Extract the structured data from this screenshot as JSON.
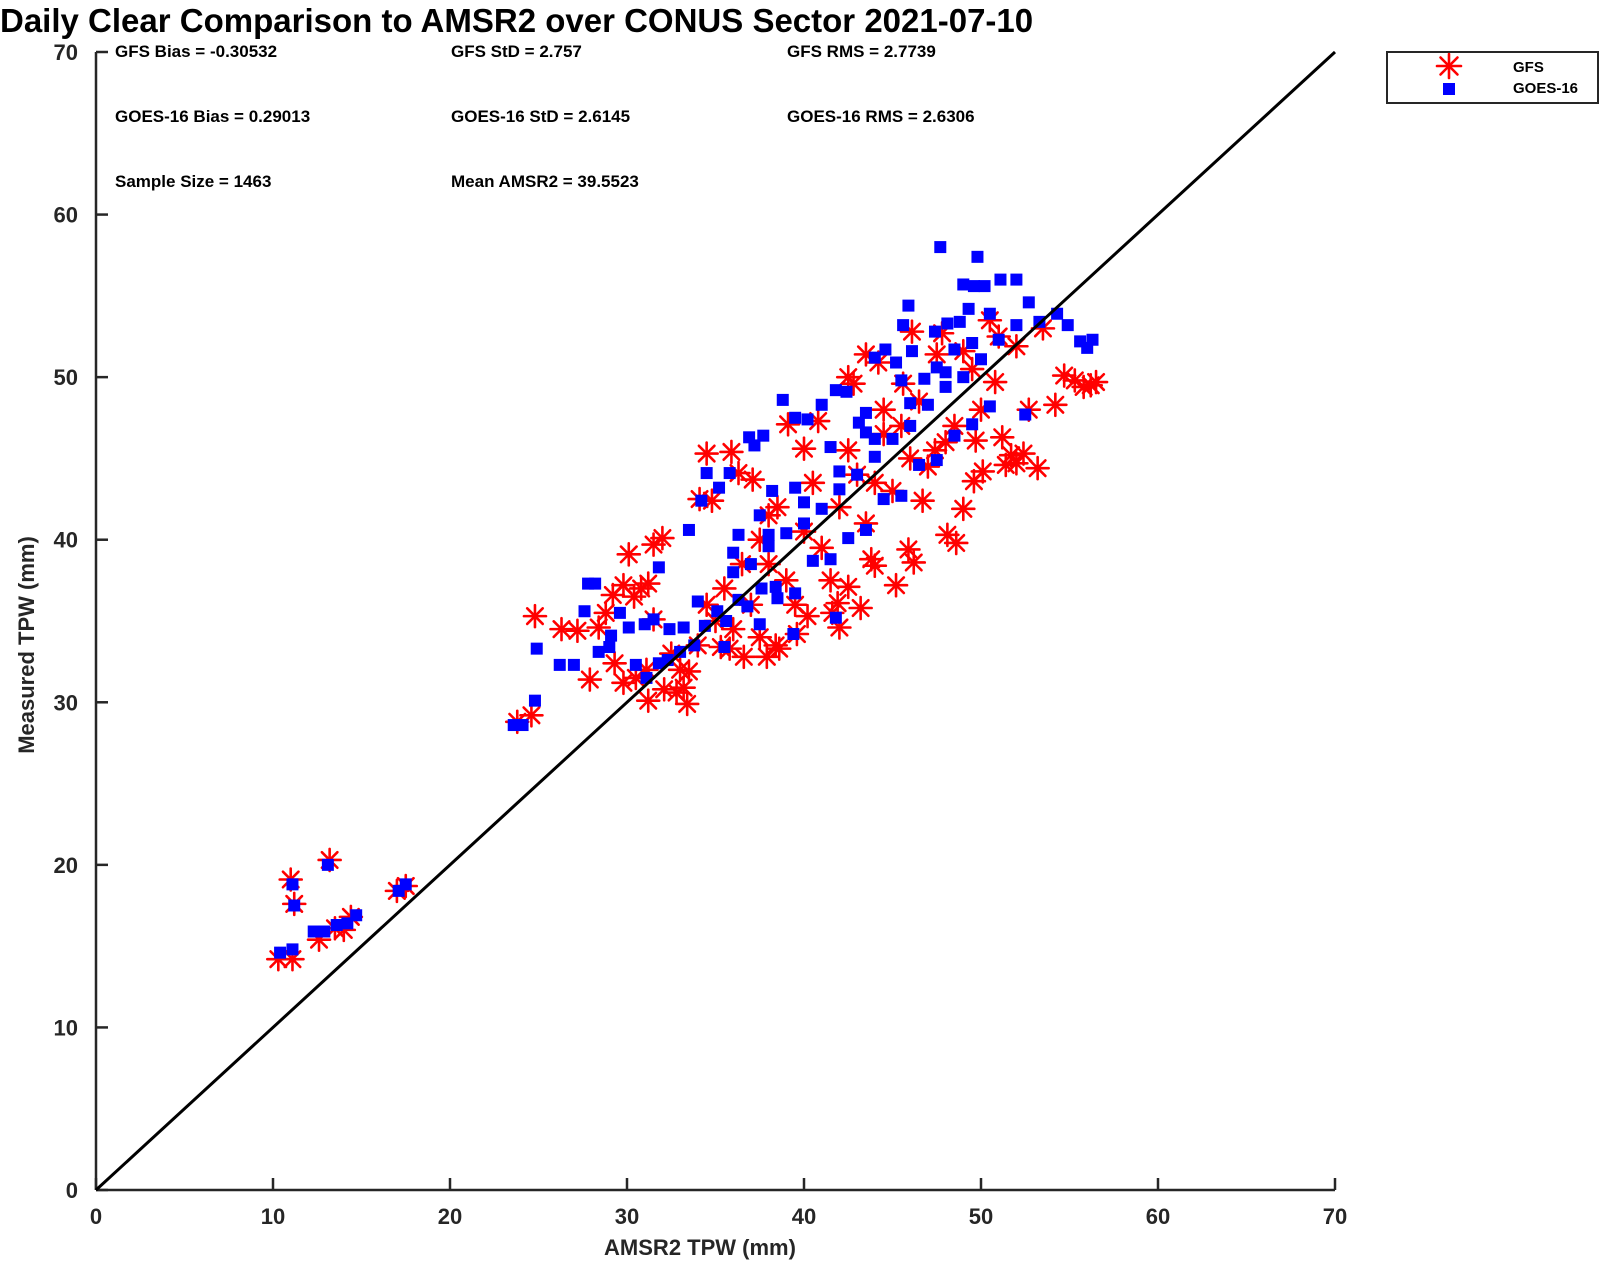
{
  "chart_data": {
    "type": "scatter",
    "title": "Daily Clear Comparison to AMSR2 over CONUS Sector 2021-07-10",
    "xlabel": "AMSR2 TPW (mm)",
    "ylabel": "Measured TPW (mm)",
    "xlim": [
      0,
      70
    ],
    "ylim": [
      0,
      70
    ],
    "xticks": [
      "0",
      "10",
      "20",
      "30",
      "40",
      "50",
      "60",
      "70"
    ],
    "yticks": [
      "0",
      "10",
      "20",
      "30",
      "40",
      "50",
      "60",
      "70"
    ],
    "grid": false,
    "legend_position": "outside top-right",
    "reference_line": {
      "type": "1:1",
      "from": [
        0,
        0
      ],
      "to": [
        70,
        70
      ],
      "color": "#000000"
    },
    "stats": [
      [
        "GFS Bias = -0.30532",
        "GFS StD = 2.757",
        "GFS RMS = 2.7739"
      ],
      [
        "GOES-16 Bias = 0.29013",
        "GOES-16 StD = 2.6145",
        "GOES-16 RMS = 2.6306"
      ],
      [
        "Sample Size = 1463",
        "Mean AMSR2 = 39.5523",
        ""
      ]
    ],
    "series": [
      {
        "name": "GFS",
        "marker": "asterisk",
        "color": "#ff0000",
        "points": [
          [
            10.3,
            14.2
          ],
          [
            11.1,
            14.2
          ],
          [
            11.0,
            19.1
          ],
          [
            11.2,
            17.6
          ],
          [
            12.6,
            15.4
          ],
          [
            13.2,
            20.3
          ],
          [
            13.5,
            16.1
          ],
          [
            14.0,
            16.0
          ],
          [
            14.4,
            16.8
          ],
          [
            17.0,
            18.4
          ],
          [
            17.5,
            18.7
          ],
          [
            23.8,
            28.8
          ],
          [
            24.6,
            29.2
          ],
          [
            24.8,
            35.3
          ],
          [
            26.3,
            34.5
          ],
          [
            27.2,
            34.4
          ],
          [
            27.9,
            31.4
          ],
          [
            28.4,
            34.6
          ],
          [
            28.8,
            35.5
          ],
          [
            29.2,
            36.6
          ],
          [
            29.3,
            32.4
          ],
          [
            29.8,
            37.2
          ],
          [
            29.8,
            31.2
          ],
          [
            30.1,
            39.1
          ],
          [
            30.4,
            36.5
          ],
          [
            30.8,
            37.0
          ],
          [
            31.2,
            37.3
          ],
          [
            31.1,
            32.0
          ],
          [
            31.5,
            35.1
          ],
          [
            31.5,
            39.7
          ],
          [
            31.2,
            30.1
          ],
          [
            32.0,
            40.1
          ],
          [
            32.1,
            30.8
          ],
          [
            32.8,
            30.6
          ],
          [
            33.2,
            30.9
          ],
          [
            33.4,
            29.9
          ],
          [
            33.5,
            31.9
          ],
          [
            34.1,
            42.5
          ],
          [
            34.5,
            45.3
          ],
          [
            34.8,
            42.4
          ],
          [
            35.3,
            33.4
          ],
          [
            35.8,
            33.3
          ],
          [
            35.9,
            45.4
          ],
          [
            36.3,
            44.1
          ],
          [
            36.6,
            32.8
          ],
          [
            37.1,
            43.7
          ],
          [
            37.5,
            34.0
          ],
          [
            37.9,
            32.8
          ],
          [
            38.0,
            41.5
          ],
          [
            38.4,
            33.5
          ],
          [
            38.6,
            33.3
          ],
          [
            39.1,
            47.1
          ],
          [
            39.6,
            34.2
          ],
          [
            40.0,
            45.6
          ],
          [
            40.2,
            35.3
          ],
          [
            40.8,
            47.3
          ],
          [
            41.6,
            35.5
          ],
          [
            41.9,
            36.1
          ],
          [
            42.0,
            34.6
          ],
          [
            42.5,
            37.1
          ],
          [
            42.5,
            50.0
          ],
          [
            42.8,
            49.6
          ],
          [
            43.2,
            35.8
          ],
          [
            43.5,
            51.4
          ],
          [
            43.8,
            38.8
          ],
          [
            44.0,
            38.4
          ],
          [
            44.2,
            50.9
          ],
          [
            45.2,
            37.2
          ],
          [
            45.6,
            49.6
          ],
          [
            45.9,
            39.4
          ],
          [
            46.1,
            52.8
          ],
          [
            46.2,
            38.6
          ],
          [
            46.7,
            42.4
          ],
          [
            47.4,
            45.5
          ],
          [
            47.8,
            52.7
          ],
          [
            48.1,
            40.3
          ],
          [
            48.6,
            39.8
          ],
          [
            49.0,
            41.9
          ],
          [
            49.6,
            43.6
          ],
          [
            49.7,
            46.1
          ],
          [
            50.1,
            44.2
          ],
          [
            50.5,
            53.5
          ],
          [
            50.8,
            49.7
          ],
          [
            51.2,
            46.3
          ],
          [
            51.4,
            44.6
          ],
          [
            51.7,
            45.2
          ],
          [
            52.0,
            44.7
          ],
          [
            52.4,
            45.3
          ],
          [
            52.7,
            48.0
          ],
          [
            53.2,
            44.4
          ],
          [
            53.5,
            53.0
          ],
          [
            54.2,
            48.3
          ],
          [
            54.7,
            50.1
          ],
          [
            55.3,
            49.8
          ],
          [
            55.8,
            49.4
          ],
          [
            56.2,
            49.5
          ],
          [
            56.5,
            49.7
          ],
          [
            52.0,
            51.9
          ],
          [
            51.0,
            52.5
          ],
          [
            49.0,
            51.6
          ],
          [
            47.5,
            51.4
          ],
          [
            44.5,
            48.0
          ],
          [
            43.0,
            44.0
          ],
          [
            45.5,
            47.0
          ],
          [
            48.5,
            47.0
          ],
          [
            41.0,
            39.5
          ],
          [
            39.0,
            37.5
          ],
          [
            37.0,
            36.0
          ],
          [
            36.0,
            34.5
          ],
          [
            35.0,
            35.0
          ],
          [
            34.0,
            33.5
          ],
          [
            38.0,
            38.5
          ],
          [
            40.0,
            40.5
          ],
          [
            42.0,
            42.0
          ],
          [
            44.0,
            43.5
          ],
          [
            46.0,
            45.0
          ],
          [
            36.5,
            38.5
          ],
          [
            33.0,
            32.0
          ],
          [
            39.5,
            36.0
          ],
          [
            41.5,
            37.5
          ],
          [
            43.5,
            41.0
          ],
          [
            45.0,
            43.0
          ],
          [
            47.0,
            44.5
          ],
          [
            48.0,
            46.0
          ],
          [
            50.0,
            48.0
          ],
          [
            37.5,
            40.0
          ],
          [
            35.5,
            37.0
          ],
          [
            34.5,
            36.0
          ],
          [
            32.5,
            33.0
          ],
          [
            30.5,
            31.5
          ],
          [
            38.5,
            42.0
          ],
          [
            40.5,
            43.5
          ],
          [
            42.5,
            45.5
          ],
          [
            44.5,
            46.5
          ],
          [
            46.5,
            48.5
          ],
          [
            49.5,
            50.5
          ]
        ]
      },
      {
        "name": "GOES-16",
        "marker": "square",
        "color": "#0000ff",
        "points": [
          [
            10.4,
            14.6
          ],
          [
            11.1,
            14.8
          ],
          [
            11.1,
            18.8
          ],
          [
            11.2,
            17.5
          ],
          [
            12.3,
            15.9
          ],
          [
            12.9,
            15.9
          ],
          [
            13.1,
            20.0
          ],
          [
            13.6,
            16.3
          ],
          [
            14.2,
            16.4
          ],
          [
            14.7,
            16.9
          ],
          [
            17.1,
            18.4
          ],
          [
            17.5,
            18.8
          ],
          [
            23.6,
            28.6
          ],
          [
            24.1,
            28.6
          ],
          [
            24.8,
            30.1
          ],
          [
            24.9,
            33.3
          ],
          [
            26.2,
            32.3
          ],
          [
            27.0,
            32.3
          ],
          [
            27.6,
            35.6
          ],
          [
            27.8,
            37.3
          ],
          [
            28.2,
            37.3
          ],
          [
            28.4,
            33.1
          ],
          [
            29.0,
            33.4
          ],
          [
            29.1,
            34.1
          ],
          [
            29.6,
            35.5
          ],
          [
            30.1,
            34.6
          ],
          [
            30.5,
            32.3
          ],
          [
            31.0,
            34.8
          ],
          [
            31.5,
            35.1
          ],
          [
            31.8,
            38.3
          ],
          [
            32.4,
            34.5
          ],
          [
            33.2,
            34.6
          ],
          [
            33.5,
            40.6
          ],
          [
            34.2,
            42.4
          ],
          [
            34.5,
            44.1
          ],
          [
            35.2,
            43.2
          ],
          [
            35.8,
            44.1
          ],
          [
            36.3,
            40.3
          ],
          [
            36.9,
            46.3
          ],
          [
            37.2,
            45.8
          ],
          [
            37.7,
            46.4
          ],
          [
            38.2,
            43.0
          ],
          [
            38.8,
            48.6
          ],
          [
            39.5,
            47.5
          ],
          [
            40.2,
            47.4
          ],
          [
            41.0,
            48.3
          ],
          [
            41.8,
            49.2
          ],
          [
            42.4,
            49.1
          ],
          [
            43.1,
            47.2
          ],
          [
            43.5,
            46.6
          ],
          [
            44.0,
            51.2
          ],
          [
            44.6,
            51.7
          ],
          [
            45.2,
            50.9
          ],
          [
            45.6,
            53.2
          ],
          [
            46.1,
            51.6
          ],
          [
            46.8,
            49.9
          ],
          [
            47.4,
            52.8
          ],
          [
            47.7,
            58.0
          ],
          [
            48.1,
            53.3
          ],
          [
            48.5,
            51.7
          ],
          [
            48.8,
            53.4
          ],
          [
            49.0,
            55.7
          ],
          [
            49.3,
            54.2
          ],
          [
            49.6,
            55.6
          ],
          [
            49.8,
            57.4
          ],
          [
            50.2,
            55.6
          ],
          [
            50.5,
            53.9
          ],
          [
            51.1,
            56.0
          ],
          [
            52.0,
            56.0
          ],
          [
            52.7,
            54.6
          ],
          [
            53.3,
            53.4
          ],
          [
            54.3,
            53.9
          ],
          [
            54.9,
            53.2
          ],
          [
            55.6,
            52.2
          ],
          [
            56.0,
            51.8
          ],
          [
            56.3,
            52.3
          ],
          [
            45.9,
            54.4
          ],
          [
            41.8,
            35.2
          ],
          [
            39.4,
            34.2
          ],
          [
            38.4,
            37.1
          ],
          [
            37.6,
            37.0
          ],
          [
            36.8,
            35.9
          ],
          [
            36.3,
            36.3
          ],
          [
            35.6,
            35.0
          ],
          [
            35.1,
            35.6
          ],
          [
            34.4,
            34.7
          ],
          [
            33.8,
            33.5
          ],
          [
            33.0,
            33.1
          ],
          [
            32.3,
            32.6
          ],
          [
            31.8,
            32.4
          ],
          [
            31.1,
            31.5
          ],
          [
            37.0,
            38.5
          ],
          [
            38.0,
            39.6
          ],
          [
            39.0,
            40.4
          ],
          [
            40.0,
            41.0
          ],
          [
            41.0,
            41.9
          ],
          [
            42.0,
            43.1
          ],
          [
            43.0,
            44.0
          ],
          [
            44.0,
            45.1
          ],
          [
            45.0,
            46.2
          ],
          [
            46.0,
            47.0
          ],
          [
            47.0,
            48.3
          ],
          [
            48.0,
            49.4
          ],
          [
            49.0,
            50.0
          ],
          [
            50.0,
            51.1
          ],
          [
            51.0,
            52.3
          ],
          [
            52.0,
            53.2
          ],
          [
            38.5,
            36.4
          ],
          [
            40.5,
            38.7
          ],
          [
            42.5,
            40.1
          ],
          [
            44.5,
            42.5
          ],
          [
            46.5,
            44.6
          ],
          [
            48.5,
            46.4
          ],
          [
            50.5,
            48.2
          ],
          [
            52.5,
            47.7
          ],
          [
            36.0,
            39.2
          ],
          [
            37.5,
            41.5
          ],
          [
            39.5,
            43.2
          ],
          [
            41.5,
            45.7
          ],
          [
            43.5,
            47.8
          ],
          [
            45.5,
            49.8
          ],
          [
            47.5,
            50.6
          ],
          [
            49.5,
            52.1
          ],
          [
            35.5,
            33.4
          ],
          [
            37.5,
            34.8
          ],
          [
            39.5,
            36.7
          ],
          [
            41.5,
            38.8
          ],
          [
            43.5,
            40.6
          ],
          [
            45.5,
            42.7
          ],
          [
            47.5,
            44.9
          ],
          [
            49.5,
            47.1
          ],
          [
            34.0,
            36.2
          ],
          [
            36.0,
            38.0
          ],
          [
            38.0,
            40.3
          ],
          [
            40.0,
            42.3
          ],
          [
            42.0,
            44.2
          ],
          [
            44.0,
            46.2
          ],
          [
            46.0,
            48.4
          ],
          [
            48.0,
            50.3
          ]
        ]
      }
    ]
  }
}
